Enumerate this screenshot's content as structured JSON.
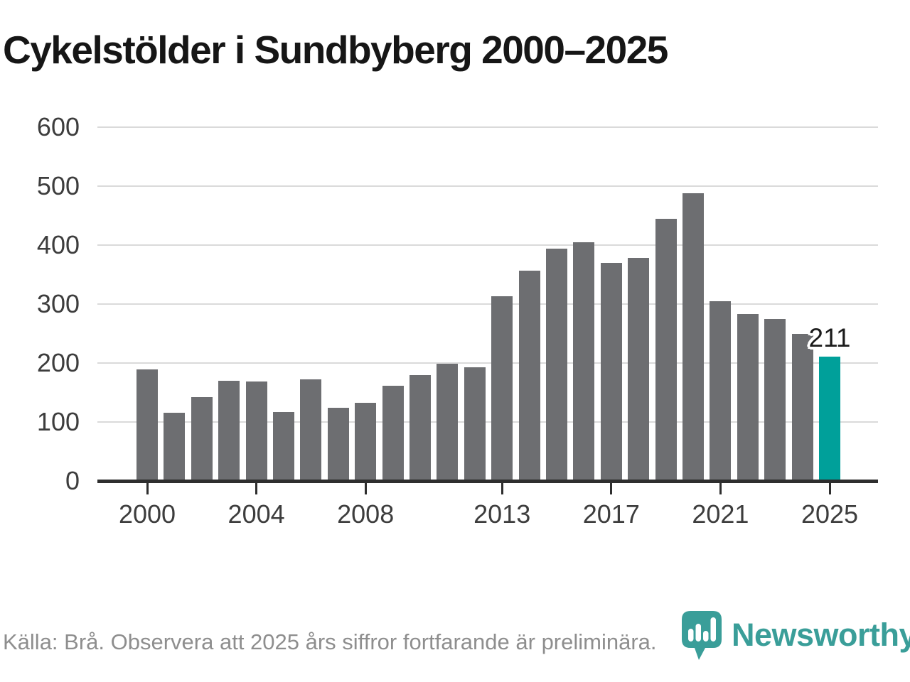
{
  "title": "Cykelstölder i Sundbyberg 2000–2025",
  "footer": {
    "source_note": "Källa: Brå. Observera att 2025 års siffror fortfarande är preliminära."
  },
  "logo": {
    "brand": "Newsworthy"
  },
  "colors": {
    "bar": "#6d6e71",
    "highlight": "#00a09a",
    "gridline": "#dadada",
    "axis": "#2e2e2e",
    "title": "#161616",
    "tick_label": "#3d3d3d",
    "footer_text": "#8e8e8e",
    "logo_teal": "#3a9e99"
  },
  "chart_data": {
    "type": "bar",
    "title": "Cykelstölder i Sundbyberg 2000–2025",
    "xlabel": "",
    "ylabel": "",
    "ylim": [
      0,
      600
    ],
    "y_ticks": [
      0,
      100,
      200,
      300,
      400,
      500,
      600
    ],
    "grid": true,
    "x": [
      2000,
      2001,
      2002,
      2003,
      2004,
      2005,
      2006,
      2007,
      2008,
      2009,
      2010,
      2011,
      2012,
      2013,
      2014,
      2015,
      2016,
      2017,
      2018,
      2019,
      2020,
      2021,
      2022,
      2023,
      2024,
      2025
    ],
    "values": [
      189,
      116,
      142,
      170,
      169,
      117,
      172,
      124,
      133,
      162,
      180,
      199,
      193,
      313,
      357,
      394,
      405,
      370,
      378,
      444,
      488,
      305,
      283,
      275,
      250,
      211
    ],
    "x_tick_years": [
      2000,
      2004,
      2008,
      2013,
      2017,
      2021,
      2025
    ],
    "x_tick_labels": [
      "2000",
      "2004",
      "2008",
      "2013",
      "2017",
      "2021",
      "2025"
    ],
    "highlight_year": 2025,
    "annotation": {
      "year": 2025,
      "text": "211"
    }
  }
}
